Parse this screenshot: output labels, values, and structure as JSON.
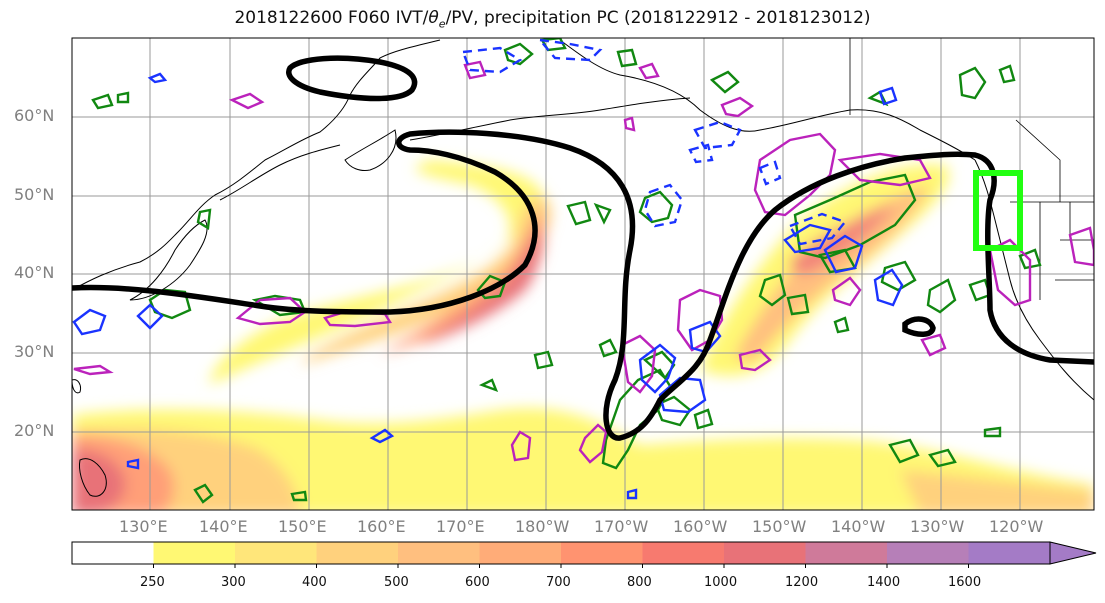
{
  "title": {
    "prefix": "2018122600 F060 IVT/",
    "theta": "θ",
    "theta_sub": "e",
    "suffix": "/PV, precipitation PC (2018122912 - 2018123012)"
  },
  "lat_ticks": [
    "60°N",
    "50°N",
    "40°N",
    "30°N",
    "20°N"
  ],
  "lon_ticks": [
    "130°E",
    "140°E",
    "150°E",
    "160°E",
    "170°E",
    "180°W",
    "170°W",
    "160°W",
    "150°W",
    "140°W",
    "130°W",
    "120°W"
  ],
  "colorbar": {
    "labels": [
      "250",
      "300",
      "400",
      "500",
      "600",
      "700",
      "800",
      "1000",
      "1200",
      "1400",
      "1600"
    ],
    "colors": [
      "#ffffff",
      "#fff873",
      "#ffe67a",
      "#ffd17d",
      "#ffbf7f",
      "#ffac78",
      "#ff9370",
      "#f77a6f",
      "#e87278",
      "#cf7a9a",
      "#b67fb8",
      "#a47bc6"
    ]
  },
  "legend_colors": {
    "ivt_contour": "#000000",
    "precip_positive": "#118811",
    "pv_dashed": "#1a33ff",
    "theta_e": "#bb22bb",
    "target_box": "#22ff11"
  }
}
